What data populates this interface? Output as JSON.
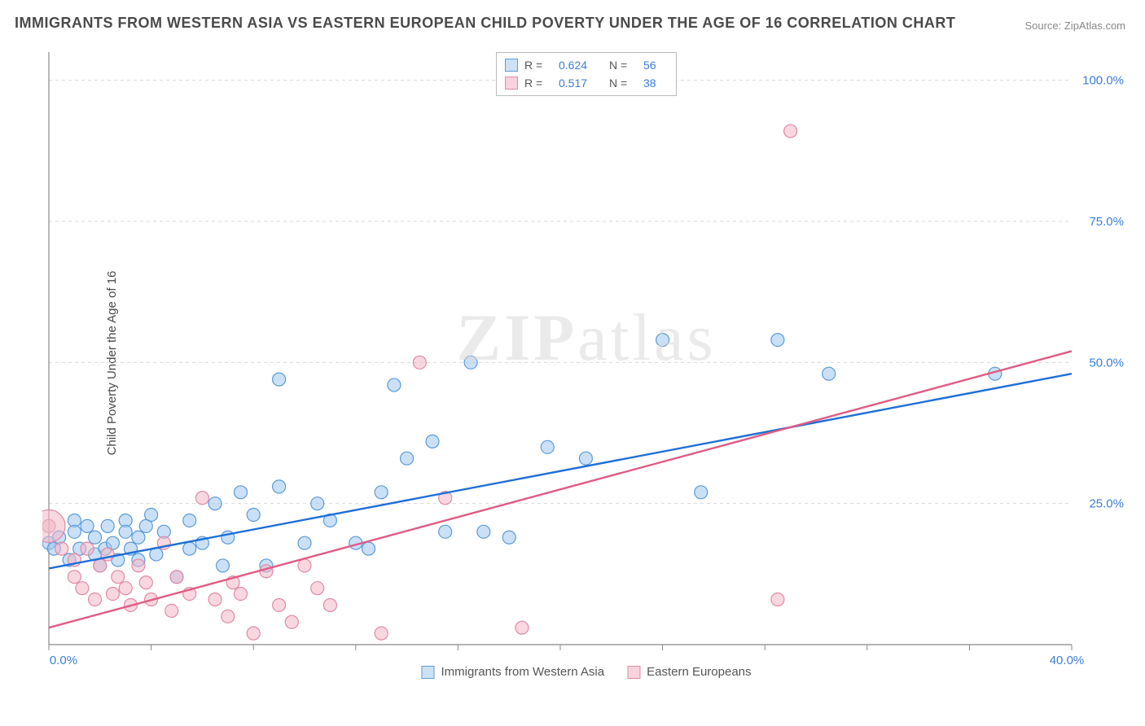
{
  "title": "IMMIGRANTS FROM WESTERN ASIA VS EASTERN EUROPEAN CHILD POVERTY UNDER THE AGE OF 16 CORRELATION CHART",
  "source": "Source: ZipAtlas.com",
  "ylabel": "Child Poverty Under the Age of 16",
  "watermark": "ZIPatlas",
  "chart": {
    "type": "scatter",
    "xlim": [
      0,
      40
    ],
    "ylim": [
      0,
      105
    ],
    "xtick_step": 4,
    "ytick_step": 25,
    "xtick_labels": {
      "0": "0.0%",
      "40": "40.0%"
    },
    "ytick_labels": {
      "25": "25.0%",
      "50": "50.0%",
      "75": "75.0%",
      "100": "100.0%"
    },
    "background_color": "#ffffff",
    "grid_color": "#d8d8d8",
    "grid_dash": "4 4",
    "axis_color": "#888888",
    "tick_label_color": "#3b7dd8",
    "tick_fontsize": 15,
    "label_fontsize": 15,
    "title_fontsize": 18,
    "marker_radius": 8,
    "series": [
      {
        "key": "a",
        "label": "Immigrants from Western Asia",
        "fill": "#9fc7f0",
        "fill_opacity": 0.55,
        "stroke": "#5a9bd8",
        "reg_color": "#1e6fd8",
        "R": "0.624",
        "N": "56",
        "reg_line": {
          "x1": 0,
          "y1": 13.5,
          "x2": 40,
          "y2": 48
        },
        "points": [
          [
            0,
            18
          ],
          [
            0.2,
            17
          ],
          [
            0.4,
            19
          ],
          [
            0.8,
            15
          ],
          [
            1,
            22
          ],
          [
            1,
            20
          ],
          [
            1.2,
            17
          ],
          [
            1.5,
            21
          ],
          [
            1.8,
            16
          ],
          [
            1.8,
            19
          ],
          [
            2,
            14
          ],
          [
            2.2,
            17
          ],
          [
            2.3,
            21
          ],
          [
            2.5,
            18
          ],
          [
            2.7,
            15
          ],
          [
            3,
            22
          ],
          [
            3,
            20
          ],
          [
            3.2,
            17
          ],
          [
            3.5,
            15
          ],
          [
            3.5,
            19
          ],
          [
            3.8,
            21
          ],
          [
            4,
            23
          ],
          [
            4.2,
            16
          ],
          [
            4.5,
            20
          ],
          [
            5,
            12
          ],
          [
            5.5,
            17
          ],
          [
            5.5,
            22
          ],
          [
            6,
            18
          ],
          [
            6.5,
            25
          ],
          [
            6.8,
            14
          ],
          [
            7,
            19
          ],
          [
            7.5,
            27
          ],
          [
            8,
            23
          ],
          [
            8.5,
            14
          ],
          [
            9,
            28
          ],
          [
            9,
            47
          ],
          [
            10,
            18
          ],
          [
            10.5,
            25
          ],
          [
            11,
            22
          ],
          [
            12,
            18
          ],
          [
            12.5,
            17
          ],
          [
            13,
            27
          ],
          [
            13.5,
            46
          ],
          [
            14,
            33
          ],
          [
            15,
            36
          ],
          [
            15.5,
            20
          ],
          [
            16.5,
            50
          ],
          [
            17,
            20
          ],
          [
            18,
            19
          ],
          [
            19.5,
            35
          ],
          [
            21,
            33
          ],
          [
            24,
            54
          ],
          [
            25.5,
            27
          ],
          [
            28.5,
            54
          ],
          [
            30.5,
            48
          ],
          [
            37,
            48
          ]
        ]
      },
      {
        "key": "b",
        "label": "Eastern Europeans",
        "fill": "#f4b6c6",
        "fill_opacity": 0.55,
        "stroke": "#e08aa5",
        "reg_color": "#e05b84",
        "R": "0.517",
        "N": "38",
        "reg_line": {
          "x1": 0,
          "y1": 3,
          "x2": 40,
          "y2": 52
        },
        "points": [
          [
            0,
            21
          ],
          [
            0.5,
            17
          ],
          [
            1,
            12
          ],
          [
            1,
            15
          ],
          [
            1.3,
            10
          ],
          [
            1.5,
            17
          ],
          [
            1.8,
            8
          ],
          [
            2,
            14
          ],
          [
            2.3,
            16
          ],
          [
            2.5,
            9
          ],
          [
            2.7,
            12
          ],
          [
            3,
            10
          ],
          [
            3.2,
            7
          ],
          [
            3.5,
            14
          ],
          [
            3.8,
            11
          ],
          [
            4,
            8
          ],
          [
            4.5,
            18
          ],
          [
            4.8,
            6
          ],
          [
            5,
            12
          ],
          [
            5.5,
            9
          ],
          [
            6,
            26
          ],
          [
            6.5,
            8
          ],
          [
            7,
            5
          ],
          [
            7.2,
            11
          ],
          [
            7.5,
            9
          ],
          [
            8,
            2
          ],
          [
            8.5,
            13
          ],
          [
            9,
            7
          ],
          [
            9.5,
            4
          ],
          [
            10,
            14
          ],
          [
            10.5,
            10
          ],
          [
            11,
            7
          ],
          [
            13,
            2
          ],
          [
            14.5,
            50
          ],
          [
            15.5,
            26
          ],
          [
            18.5,
            3
          ],
          [
            28.5,
            8
          ],
          [
            29,
            91
          ]
        ]
      }
    ]
  },
  "legend_top": {
    "r_label": "R =",
    "n_label": "N ="
  },
  "legend_bottom_labels": [
    "Immigrants from Western Asia",
    "Eastern Europeans"
  ]
}
